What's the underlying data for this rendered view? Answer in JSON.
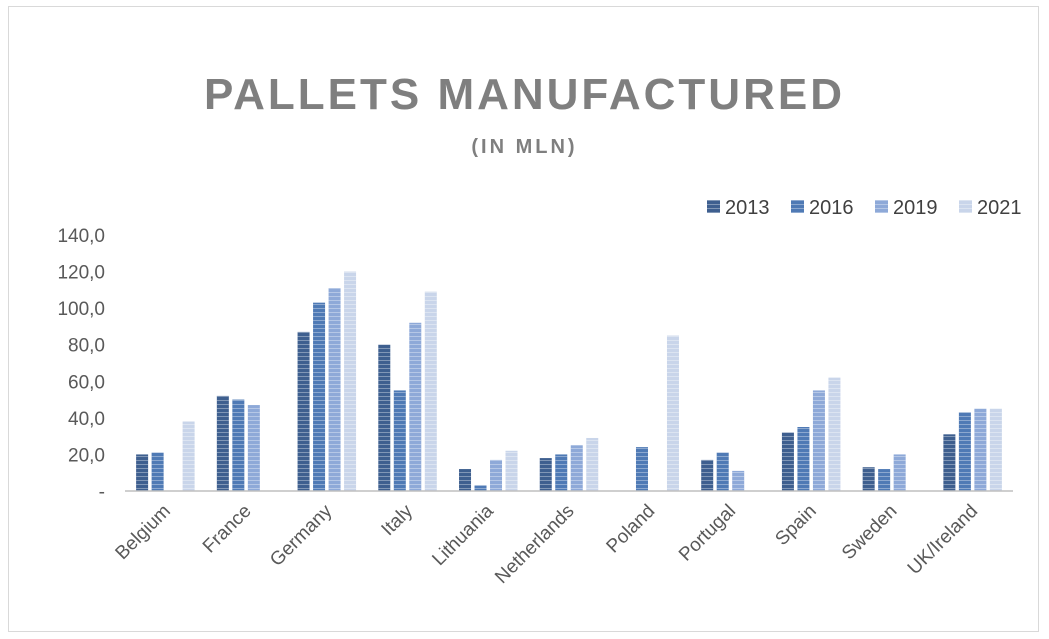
{
  "chart_data": {
    "type": "bar",
    "title": "PALLETS MANUFACTURED",
    "subtitle": "(IN MLN)",
    "xlabel": "",
    "ylabel": "",
    "categories": [
      "Belgium",
      "France",
      "Germany",
      "Italy",
      "Lithuania",
      "Netherlands",
      "Poland",
      "Portugal",
      "Spain",
      "Sweden",
      "UK/Ireland"
    ],
    "series": [
      {
        "name": "2013",
        "color": "#3e5f8f",
        "values": [
          20,
          52,
          87,
          80,
          12,
          18,
          null,
          17,
          32,
          13,
          31
        ]
      },
      {
        "name": "2016",
        "color": "#4f7ab5",
        "values": [
          21,
          50,
          103,
          55,
          3,
          20,
          24,
          21,
          35,
          12,
          43
        ]
      },
      {
        "name": "2019",
        "color": "#8ea9d8",
        "values": [
          null,
          47,
          111,
          92,
          17,
          25,
          null,
          11,
          55,
          20,
          45
        ]
      },
      {
        "name": "2021",
        "color": "#c9d5ea",
        "values": [
          38,
          null,
          120,
          109,
          22,
          29,
          85,
          null,
          62,
          null,
          45
        ]
      }
    ],
    "ylim": [
      0,
      140
    ],
    "y_ticks": [
      "-",
      "20,0",
      "40,0",
      "60,0",
      "80,0",
      "100,0",
      "120,0",
      "140,0"
    ],
    "legend_position": "top-right",
    "grid": false
  }
}
